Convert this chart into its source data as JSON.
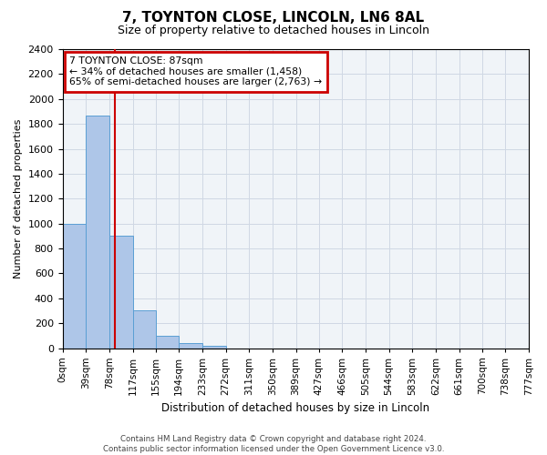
{
  "title": "7, TOYNTON CLOSE, LINCOLN, LN6 8AL",
  "subtitle": "Size of property relative to detached houses in Lincoln",
  "bar_values": [
    1000,
    1870,
    900,
    300,
    100,
    40,
    15,
    0,
    0,
    0,
    0,
    0,
    0,
    0,
    0,
    0,
    0,
    0,
    0,
    0
  ],
  "bin_edges": [
    0,
    39,
    78,
    117,
    155,
    194,
    233,
    272,
    311,
    350,
    389,
    427,
    466,
    505,
    544,
    583,
    622,
    661,
    700,
    738,
    777
  ],
  "tick_labels": [
    "0sqm",
    "39sqm",
    "78sqm",
    "117sqm",
    "155sqm",
    "194sqm",
    "233sqm",
    "272sqm",
    "311sqm",
    "350sqm",
    "389sqm",
    "427sqm",
    "466sqm",
    "505sqm",
    "544sqm",
    "583sqm",
    "622sqm",
    "661sqm",
    "700sqm",
    "738sqm",
    "777sqm"
  ],
  "xlabel": "Distribution of detached houses by size in Lincoln",
  "ylabel": "Number of detached properties",
  "ylim": [
    0,
    2400
  ],
  "bar_color": "#aec6e8",
  "bar_edgecolor": "#5a9fd4",
  "vline_x": 87,
  "vline_color": "#cc0000",
  "annotation_title": "7 TOYNTON CLOSE: 87sqm",
  "annotation_line1": "← 34% of detached houses are smaller (1,458)",
  "annotation_line2": "65% of semi-detached houses are larger (2,763) →",
  "annotation_box_color": "#cc0000",
  "footer1": "Contains HM Land Registry data © Crown copyright and database right 2024.",
  "footer2": "Contains public sector information licensed under the Open Government Licence v3.0.",
  "bg_color": "#f0f4f8",
  "grid_color": "#d0d8e4"
}
